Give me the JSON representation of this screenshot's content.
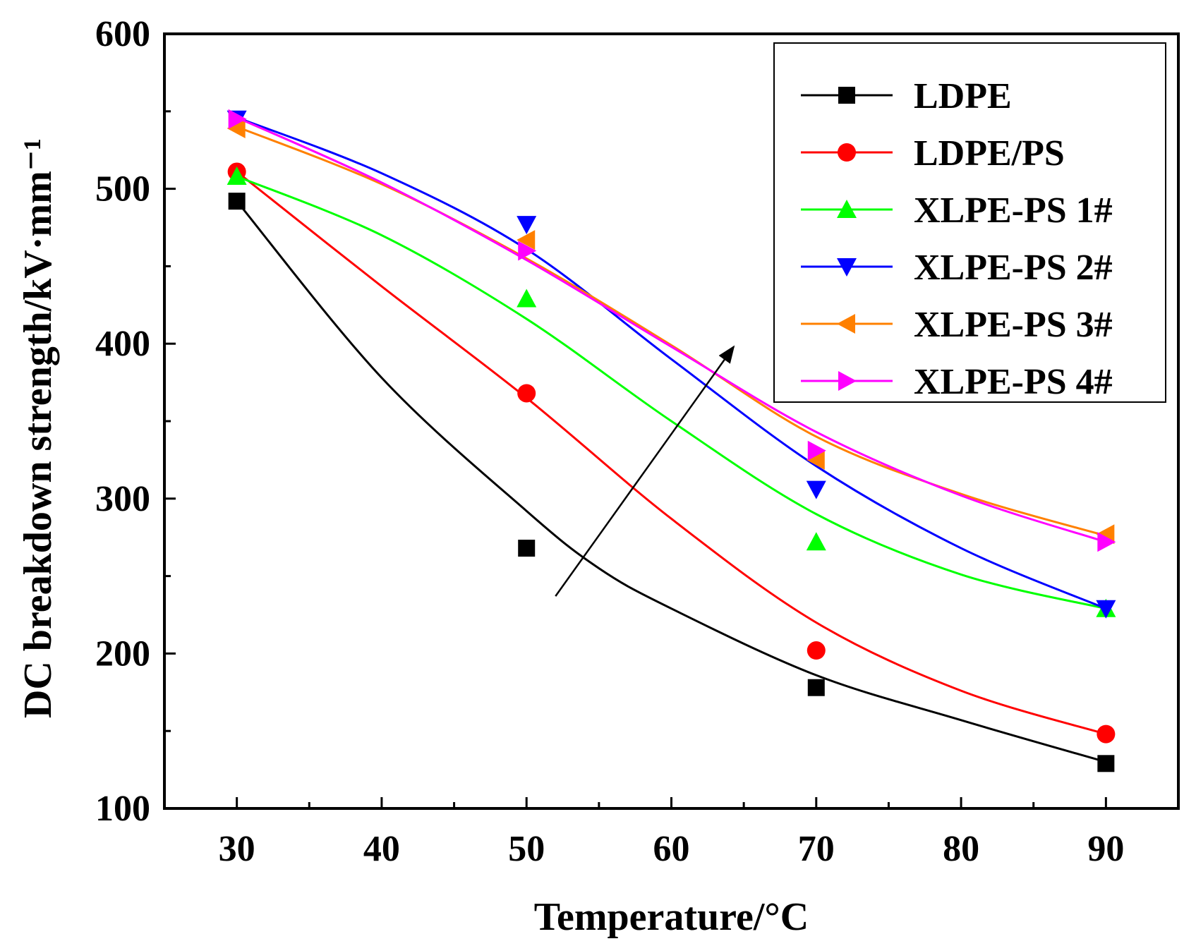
{
  "chart_data": {
    "type": "line",
    "title": "",
    "xlabel": "Temperature/°C",
    "ylabel": "DC breakdown strength/kV·mm⁻¹",
    "xlim": [
      25,
      95
    ],
    "ylim": [
      100,
      600
    ],
    "xticks": [
      30,
      40,
      50,
      60,
      70,
      80,
      90
    ],
    "yticks": [
      100,
      200,
      300,
      400,
      500,
      600
    ],
    "x": [
      30,
      50,
      70,
      90
    ],
    "legend_position": "top-right",
    "series": [
      {
        "name": "LDPE",
        "color": "#000000",
        "marker": "square",
        "values": [
          492,
          268,
          178,
          129
        ],
        "fit": [
          [
            30,
            492
          ],
          [
            40,
            378
          ],
          [
            50,
            292
          ],
          [
            55,
            255
          ],
          [
            60,
            229
          ],
          [
            70,
            186
          ],
          [
            80,
            157
          ],
          [
            90,
            130
          ]
        ]
      },
      {
        "name": "LDPE/PS",
        "color": "#ff0000",
        "marker": "circle",
        "values": [
          511,
          368,
          202,
          148
        ],
        "fit": [
          [
            30,
            511
          ],
          [
            40,
            437
          ],
          [
            50,
            365
          ],
          [
            60,
            287
          ],
          [
            70,
            220
          ],
          [
            80,
            176
          ],
          [
            90,
            148
          ]
        ]
      },
      {
        "name": "XLPE-PS 1#",
        "color": "#00ff00",
        "marker": "triangle-up",
        "values": [
          508,
          429,
          272,
          229
        ],
        "fit": [
          [
            30,
            508
          ],
          [
            40,
            470
          ],
          [
            50,
            416
          ],
          [
            60,
            350
          ],
          [
            70,
            290
          ],
          [
            80,
            251
          ],
          [
            90,
            229
          ]
        ]
      },
      {
        "name": "XLPE-PS 2#",
        "color": "#0000ff",
        "marker": "triangle-down",
        "values": [
          545,
          477,
          306,
          229
        ],
        "fit": [
          [
            30,
            546
          ],
          [
            40,
            510
          ],
          [
            50,
            461
          ],
          [
            60,
            390
          ],
          [
            70,
            321
          ],
          [
            80,
            268
          ],
          [
            90,
            229
          ]
        ]
      },
      {
        "name": "XLPE-PS 3#",
        "color": "#ff8000",
        "marker": "triangle-left",
        "values": [
          539,
          467,
          325,
          277
        ],
        "fit": [
          [
            30,
            540
          ],
          [
            40,
            503
          ],
          [
            50,
            455
          ],
          [
            60,
            399
          ],
          [
            70,
            340
          ],
          [
            80,
            303
          ],
          [
            90,
            276
          ]
        ]
      },
      {
        "name": "XLPE-PS 4#",
        "color": "#ff00ff",
        "marker": "triangle-right",
        "values": [
          545,
          460,
          331,
          272
        ],
        "fit": [
          [
            30,
            546
          ],
          [
            40,
            504
          ],
          [
            50,
            454
          ],
          [
            60,
            398
          ],
          [
            70,
            343
          ],
          [
            80,
            302
          ],
          [
            90,
            272
          ]
        ]
      }
    ],
    "annotations": [
      {
        "type": "arrow",
        "from": [
          52,
          237
        ],
        "to": [
          64.3,
          398
        ]
      }
    ]
  }
}
